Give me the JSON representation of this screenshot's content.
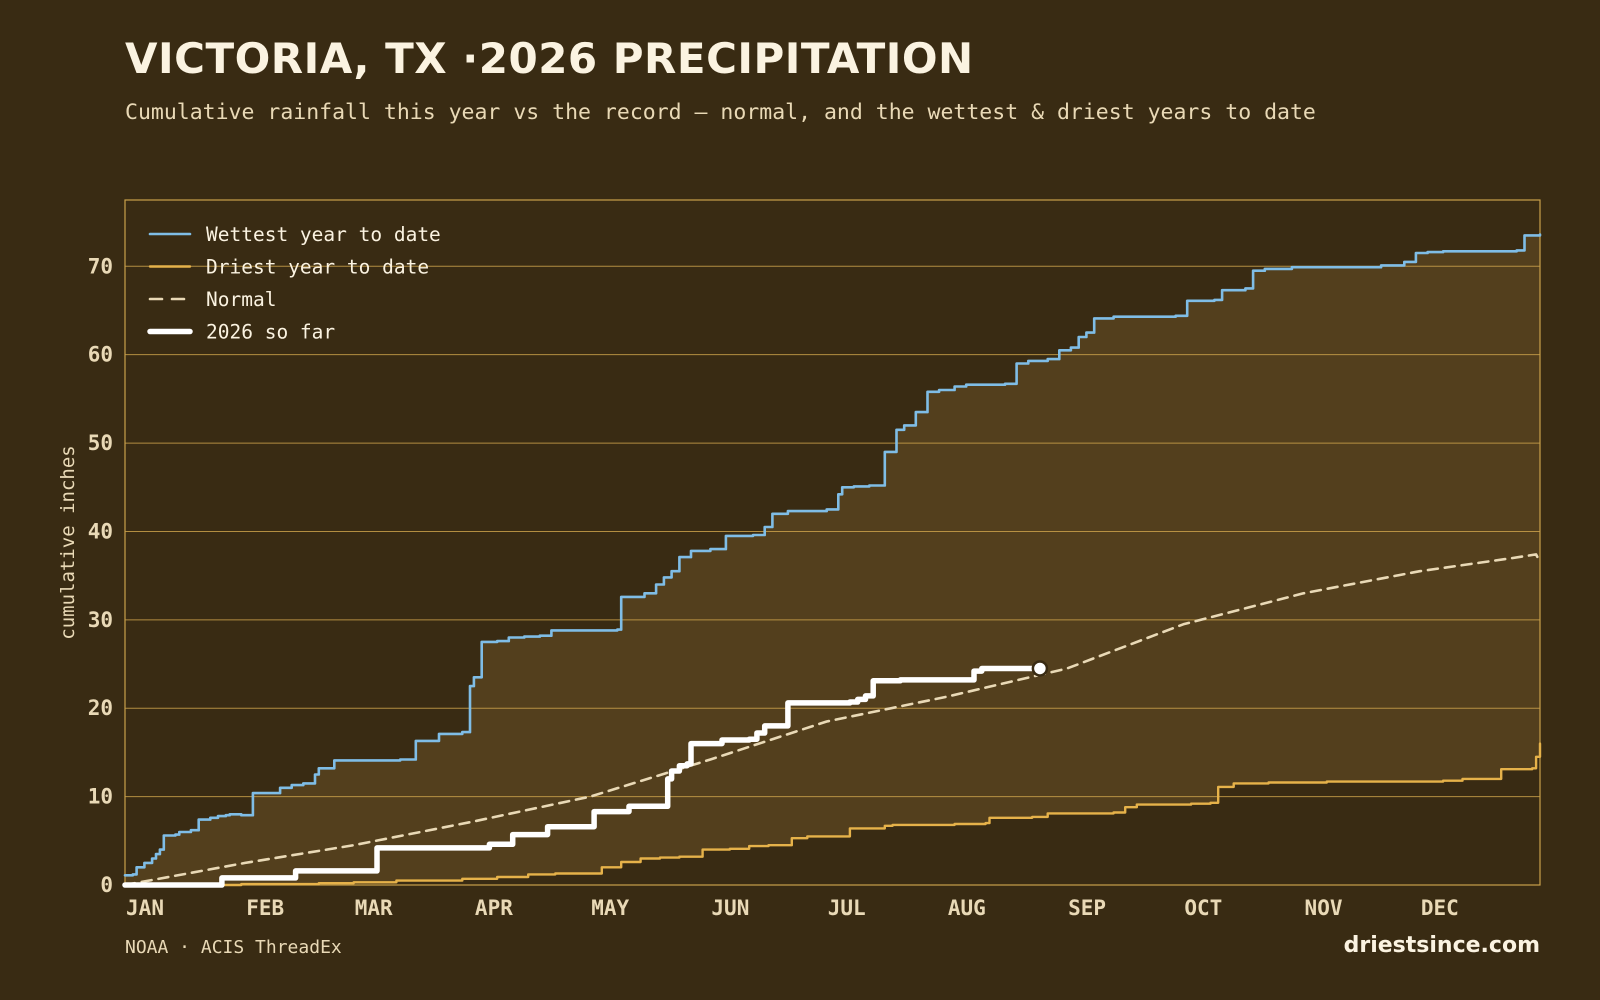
{
  "title": "VICTORIA, TX ·2026 PRECIPITATION",
  "subtitle": "Cumulative rainfall this year vs the record — normal, and the wettest & driest years to date",
  "source": "NOAA · ACIS ThreadEx",
  "site": "driestsince.com",
  "colors": {
    "background": "#392b13",
    "band_fill": "#533f1d",
    "grid": "#c9a04a",
    "wettest": "#7fbde6",
    "driest": "#e6b24a",
    "normal": "#e9d9b6",
    "current": "#ffffff",
    "text": "#e9d9b6"
  },
  "chart_data": {
    "type": "line",
    "title": "VICTORIA, TX ·2026 PRECIPITATION",
    "xlabel": "",
    "ylabel": "cumulative inches",
    "xlim": [
      0,
      365
    ],
    "ylim": [
      0,
      77.5
    ],
    "yticks": [
      0,
      10,
      20,
      30,
      40,
      50,
      60,
      70
    ],
    "x_ticks": [
      {
        "label": "JAN",
        "day": 0
      },
      {
        "label": "FEB",
        "day": 31
      },
      {
        "label": "MAR",
        "day": 59
      },
      {
        "label": "APR",
        "day": 90
      },
      {
        "label": "MAY",
        "day": 120
      },
      {
        "label": "JUN",
        "day": 151
      },
      {
        "label": "JUL",
        "day": 181
      },
      {
        "label": "AUG",
        "day": 212
      },
      {
        "label": "SEP",
        "day": 243
      },
      {
        "label": "OCT",
        "day": 273
      },
      {
        "label": "NOV",
        "day": 304
      },
      {
        "label": "DEC",
        "day": 334
      }
    ],
    "grid": true,
    "legend_position": "top-left",
    "shaded_band": "between driest and wettest year to date",
    "series": [
      {
        "name": "Wettest year to date",
        "key": "wettest",
        "step": true,
        "points": [
          [
            0,
            1.1
          ],
          [
            2,
            1.2
          ],
          [
            3,
            2
          ],
          [
            5,
            2.5
          ],
          [
            7,
            3
          ],
          [
            8,
            3.5
          ],
          [
            9,
            4
          ],
          [
            10,
            5.6
          ],
          [
            13,
            5.7
          ],
          [
            14,
            6
          ],
          [
            17,
            6.2
          ],
          [
            19,
            7.4
          ],
          [
            22,
            7.6
          ],
          [
            24,
            7.8
          ],
          [
            26,
            7.9
          ],
          [
            27,
            8
          ],
          [
            30,
            7.9
          ],
          [
            33,
            10.4
          ],
          [
            40,
            11
          ],
          [
            43,
            11.3
          ],
          [
            46,
            11.5
          ],
          [
            49,
            12.5
          ],
          [
            50,
            13.2
          ],
          [
            54,
            14.1
          ],
          [
            71,
            14.2
          ],
          [
            75,
            16.3
          ],
          [
            81,
            17.1
          ],
          [
            87,
            17.3
          ],
          [
            89,
            22.5
          ],
          [
            90,
            23.5
          ],
          [
            92,
            27.5
          ],
          [
            96,
            27.6
          ],
          [
            99,
            28
          ],
          [
            103,
            28.1
          ],
          [
            107,
            28.2
          ],
          [
            110,
            28.8
          ],
          [
            127,
            28.9
          ],
          [
            128,
            32.6
          ],
          [
            134,
            33
          ],
          [
            137,
            34
          ],
          [
            139,
            34.8
          ],
          [
            141,
            35.5
          ],
          [
            143,
            37.1
          ],
          [
            146,
            37.8
          ],
          [
            151,
            38
          ],
          [
            155,
            39.5
          ],
          [
            162,
            39.6
          ],
          [
            165,
            40.5
          ],
          [
            167,
            42
          ],
          [
            171,
            42.3
          ],
          [
            181,
            42.5
          ],
          [
            184,
            44.2
          ],
          [
            185,
            45
          ],
          [
            188,
            45.1
          ],
          [
            192,
            45.2
          ],
          [
            196,
            49
          ],
          [
            199,
            51.5
          ],
          [
            201,
            52
          ],
          [
            204,
            53.5
          ],
          [
            207,
            55.8
          ],
          [
            210,
            56
          ],
          [
            214,
            56.4
          ],
          [
            217,
            56.6
          ],
          [
            227,
            56.7
          ],
          [
            230,
            59
          ],
          [
            233,
            59.3
          ],
          [
            238,
            59.5
          ],
          [
            241,
            60.5
          ],
          [
            244,
            60.8
          ],
          [
            246,
            62
          ],
          [
            248,
            62.5
          ],
          [
            250,
            64.1
          ],
          [
            255,
            64.3
          ],
          [
            259,
            64.3
          ],
          [
            271,
            64.4
          ],
          [
            274,
            66.1
          ],
          [
            281,
            66.2
          ],
          [
            283,
            67.3
          ],
          [
            289,
            67.5
          ],
          [
            291,
            69.5
          ],
          [
            294,
            69.7
          ],
          [
            301,
            69.9
          ],
          [
            324,
            70.1
          ],
          [
            330,
            70.5
          ],
          [
            333,
            71.5
          ],
          [
            336,
            71.6
          ],
          [
            340,
            71.7
          ],
          [
            359,
            71.8
          ],
          [
            361,
            73.5
          ],
          [
            365,
            73.6
          ]
        ]
      },
      {
        "name": "Driest year to date",
        "key": "driest",
        "step": true,
        "points": [
          [
            0,
            0
          ],
          [
            30,
            0.1
          ],
          [
            50,
            0.2
          ],
          [
            59,
            0.3
          ],
          [
            70,
            0.5
          ],
          [
            87,
            0.7
          ],
          [
            96,
            0.9
          ],
          [
            104,
            1.2
          ],
          [
            111,
            1.3
          ],
          [
            123,
            2
          ],
          [
            128,
            2.6
          ],
          [
            133,
            3
          ],
          [
            138,
            3.1
          ],
          [
            143,
            3.2
          ],
          [
            149,
            4
          ],
          [
            156,
            4.1
          ],
          [
            161,
            4.4
          ],
          [
            166,
            4.5
          ],
          [
            172,
            5.3
          ],
          [
            176,
            5.5
          ],
          [
            186,
            5.5
          ],
          [
            187,
            6.4
          ],
          [
            196,
            6.7
          ],
          [
            198,
            6.8
          ],
          [
            214,
            6.9
          ],
          [
            222,
            7
          ],
          [
            223,
            7.6
          ],
          [
            234,
            7.7
          ],
          [
            238,
            8.1
          ],
          [
            255,
            8.2
          ],
          [
            258,
            8.8
          ],
          [
            261,
            9.1
          ],
          [
            275,
            9.2
          ],
          [
            280,
            9.3
          ],
          [
            282,
            11.1
          ],
          [
            286,
            11.5
          ],
          [
            295,
            11.6
          ],
          [
            310,
            11.7
          ],
          [
            340,
            11.8
          ],
          [
            345,
            12
          ],
          [
            355,
            13.1
          ],
          [
            363,
            13.2
          ],
          [
            364,
            14.5
          ],
          [
            365,
            16
          ]
        ]
      },
      {
        "name": "Normal",
        "key": "normal",
        "step": false,
        "points": [
          [
            0,
            0
          ],
          [
            31,
            2.5
          ],
          [
            59,
            4.5
          ],
          [
            90,
            7.2
          ],
          [
            120,
            10
          ],
          [
            151,
            14.2
          ],
          [
            181,
            18.5
          ],
          [
            212,
            21.3
          ],
          [
            243,
            24.5
          ],
          [
            273,
            29.5
          ],
          [
            304,
            33
          ],
          [
            334,
            35.5
          ],
          [
            358,
            37
          ],
          [
            364,
            37.4
          ],
          [
            365,
            36.5
          ]
        ]
      },
      {
        "name": "2026 so far",
        "key": "current",
        "step": true,
        "points": [
          [
            0,
            0
          ],
          [
            23,
            0
          ],
          [
            25,
            0.8
          ],
          [
            43,
            0.8
          ],
          [
            44,
            1.6
          ],
          [
            64,
            1.6
          ],
          [
            65,
            4.2
          ],
          [
            93,
            4.2
          ],
          [
            94,
            4.6
          ],
          [
            99,
            4.6
          ],
          [
            100,
            5.7
          ],
          [
            108,
            5.7
          ],
          [
            109,
            6.6
          ],
          [
            120,
            6.6
          ],
          [
            121,
            8.3
          ],
          [
            129,
            8.3
          ],
          [
            130,
            8.9
          ],
          [
            138,
            8.9
          ],
          [
            140,
            12
          ],
          [
            141,
            12.9
          ],
          [
            143,
            13.5
          ],
          [
            145,
            13.7
          ],
          [
            146,
            16
          ],
          [
            153,
            16
          ],
          [
            154,
            16.4
          ],
          [
            161,
            16.5
          ],
          [
            163,
            17.2
          ],
          [
            165,
            18
          ],
          [
            170,
            18
          ],
          [
            171,
            20.6
          ],
          [
            187,
            20.7
          ],
          [
            189,
            21
          ],
          [
            191,
            21.4
          ],
          [
            193,
            23.1
          ],
          [
            197,
            23.1
          ],
          [
            200,
            23.2
          ],
          [
            218,
            23.2
          ],
          [
            219,
            24.2
          ],
          [
            221,
            24.5
          ],
          [
            236,
            24.5
          ]
        ]
      }
    ]
  }
}
